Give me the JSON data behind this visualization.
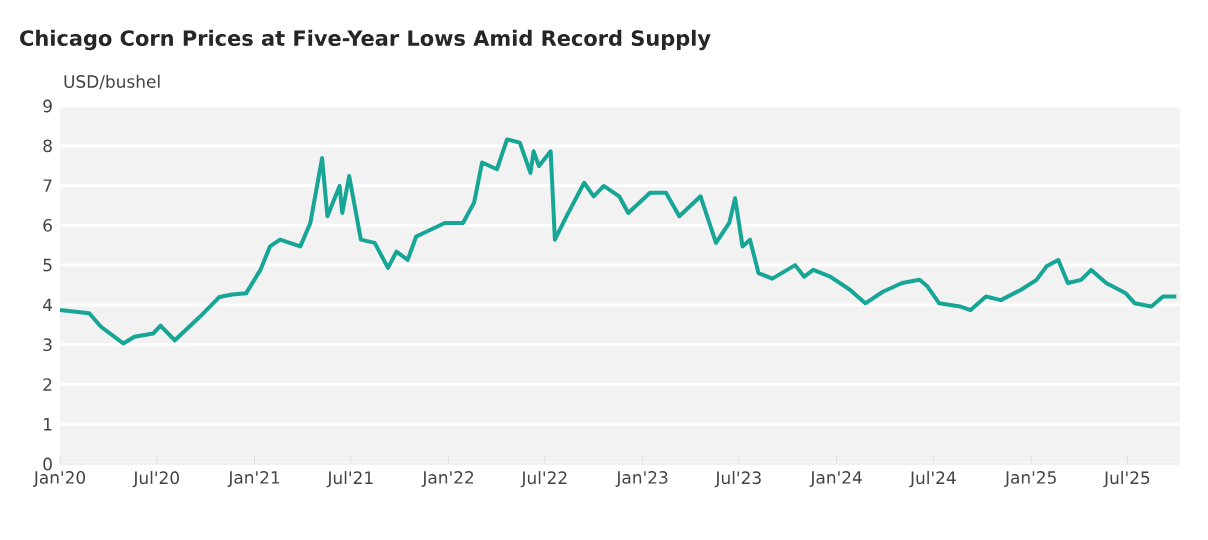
{
  "chart_data": {
    "type": "line",
    "title": "Chicago Corn Prices at Five-Year Lows Amid Record Supply",
    "ylabel": "USD/bushel",
    "x": [
      "2020-01-01",
      "2020-02-25",
      "2020-03-18",
      "2020-04-29",
      "2020-05-20",
      "2020-06-24",
      "2020-07-08",
      "2020-08-04",
      "2020-09-20",
      "2020-10-27",
      "2020-11-20",
      "2020-12-16",
      "2021-01-12",
      "2021-01-30",
      "2021-02-18",
      "2021-03-28",
      "2021-04-16",
      "2021-05-08",
      "2021-05-18",
      "2021-06-10",
      "2021-06-15",
      "2021-06-28",
      "2021-07-20",
      "2021-08-15",
      "2021-09-09",
      "2021-09-25",
      "2021-10-16",
      "2021-11-01",
      "2021-12-25",
      "2022-01-28",
      "2022-02-18",
      "2022-03-05",
      "2022-04-02",
      "2022-04-21",
      "2022-05-15",
      "2022-06-04",
      "2022-06-10",
      "2022-06-20",
      "2022-07-12",
      "2022-07-20",
      "2022-08-11",
      "2022-09-13",
      "2022-10-01",
      "2022-10-20",
      "2022-11-18",
      "2022-12-05",
      "2023-01-15",
      "2023-02-14",
      "2023-03-11",
      "2023-04-20",
      "2023-05-19",
      "2023-06-13",
      "2023-06-24",
      "2023-07-08",
      "2023-07-22",
      "2023-08-07",
      "2023-09-02",
      "2023-10-15",
      "2023-11-01",
      "2023-11-18",
      "2023-12-20",
      "2024-01-26",
      "2024-02-24",
      "2024-03-28",
      "2024-05-03",
      "2024-06-05",
      "2024-06-20",
      "2024-07-12",
      "2024-08-20",
      "2024-09-09",
      "2024-10-08",
      "2024-11-05",
      "2024-12-13",
      "2025-01-11",
      "2025-01-30",
      "2025-02-21",
      "2025-03-11",
      "2025-04-05",
      "2025-04-24",
      "2025-05-22",
      "2025-06-28",
      "2025-07-15",
      "2025-08-15",
      "2025-09-06",
      "2025-10-01"
    ],
    "values": [
      3.87,
      3.79,
      3.45,
      3.03,
      3.2,
      3.28,
      3.48,
      3.11,
      3.7,
      4.2,
      4.26,
      4.29,
      4.88,
      5.47,
      5.64,
      5.47,
      6.06,
      7.69,
      6.23,
      6.99,
      6.31,
      7.24,
      5.64,
      5.56,
      4.93,
      5.34,
      5.13,
      5.72,
      6.06,
      6.06,
      6.57,
      7.58,
      7.41,
      8.16,
      8.08,
      7.32,
      7.86,
      7.49,
      7.86,
      5.64,
      6.23,
      7.07,
      6.73,
      6.99,
      6.73,
      6.31,
      6.82,
      6.82,
      6.23,
      6.73,
      5.56,
      6.06,
      6.68,
      5.47,
      5.64,
      4.8,
      4.66,
      5.0,
      4.71,
      4.88,
      4.71,
      4.38,
      4.04,
      4.33,
      4.55,
      4.63,
      4.46,
      4.04,
      3.96,
      3.87,
      4.21,
      4.12,
      4.38,
      4.63,
      4.97,
      5.13,
      4.55,
      4.63,
      4.88,
      4.55,
      4.29,
      4.04,
      3.96,
      4.21,
      4.21
    ],
    "color": "#17a596",
    "xlim": [
      "2020-01-01",
      "2025-10-08"
    ],
    "ylim": [
      0,
      9
    ],
    "xticks": [
      {
        "value": "2020-01-01",
        "label": "Jan'20"
      },
      {
        "value": "2020-07-01",
        "label": "Jul'20"
      },
      {
        "value": "2021-01-01",
        "label": "Jan'21"
      },
      {
        "value": "2021-07-01",
        "label": "Jul'21"
      },
      {
        "value": "2022-01-01",
        "label": "Jan'22"
      },
      {
        "value": "2022-07-01",
        "label": "Jul'22"
      },
      {
        "value": "2023-01-01",
        "label": "Jan'23"
      },
      {
        "value": "2023-07-01",
        "label": "Jul'23"
      },
      {
        "value": "2024-01-01",
        "label": "Jan'24"
      },
      {
        "value": "2024-07-01",
        "label": "Jul'24"
      },
      {
        "value": "2025-01-01",
        "label": "Jan'25"
      },
      {
        "value": "2025-07-01",
        "label": "Jul'25"
      }
    ],
    "yticks": [
      0,
      1,
      2,
      3,
      4,
      5,
      6,
      7,
      8,
      9
    ],
    "grid": "y",
    "marker": "none",
    "line_style": "solid"
  }
}
